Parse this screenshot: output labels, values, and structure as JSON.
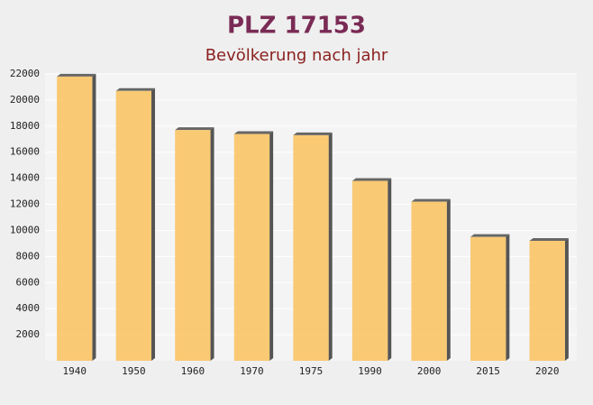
{
  "chart_data": {
    "type": "bar",
    "title": "PLZ 17153",
    "subtitle": "Bevölkerung nach jahr",
    "categories": [
      "1940",
      "1950",
      "1960",
      "1970",
      "1975",
      "1990",
      "2000",
      "2015",
      "2020"
    ],
    "values": [
      21800,
      20700,
      17700,
      17400,
      17300,
      13800,
      12200,
      9500,
      9200
    ],
    "color": "#f9c15c",
    "ylim": [
      0,
      22000
    ],
    "yticks": [
      2000,
      4000,
      6000,
      8000,
      10000,
      12000,
      14000,
      16000,
      18000,
      20000,
      22000
    ],
    "grid": true
  }
}
